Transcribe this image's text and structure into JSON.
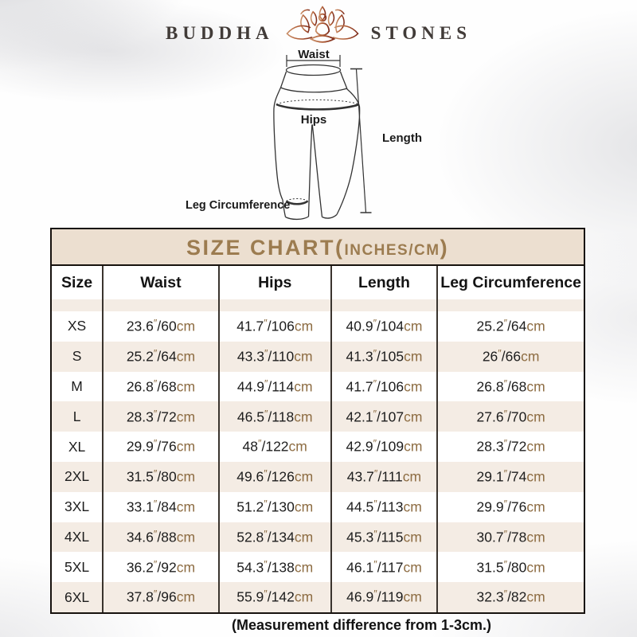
{
  "brand": {
    "name_left": "BUDDHA",
    "name_right": "STONES",
    "logo_icon": "lotus-meditation-icon"
  },
  "diagram": {
    "waist_label": "Waist",
    "hips_label": "Hips",
    "length_label": "Length",
    "leg_label": "Leg Circumference"
  },
  "size_chart": {
    "title_main": "SIZE CHART(",
    "title_sub": "INCHES/CM",
    "title_close": ")",
    "unit_inch_mark": "″",
    "unit_cm": "cm",
    "columns": [
      "Size",
      "Waist",
      "Hips",
      "Length",
      "Leg Circumference"
    ],
    "rows": [
      {
        "size": "XS",
        "waist": {
          "in": "23.6",
          "cm": "60"
        },
        "hips": {
          "in": "41.7",
          "cm": "106"
        },
        "length": {
          "in": "40.9",
          "cm": "104"
        },
        "leg": {
          "in": "25.2",
          "cm": "64"
        }
      },
      {
        "size": "S",
        "waist": {
          "in": "25.2",
          "cm": "64"
        },
        "hips": {
          "in": "43.3",
          "cm": "110"
        },
        "length": {
          "in": "41.3",
          "cm": "105"
        },
        "leg": {
          "in": "26",
          "cm": "66"
        }
      },
      {
        "size": "M",
        "waist": {
          "in": "26.8",
          "cm": "68"
        },
        "hips": {
          "in": "44.9",
          "cm": "114"
        },
        "length": {
          "in": "41.7",
          "cm": "106"
        },
        "leg": {
          "in": "26.8",
          "cm": "68"
        }
      },
      {
        "size": "L",
        "waist": {
          "in": "28.3",
          "cm": "72"
        },
        "hips": {
          "in": "46.5",
          "cm": "118"
        },
        "length": {
          "in": "42.1",
          "cm": "107"
        },
        "leg": {
          "in": "27.6",
          "cm": "70"
        }
      },
      {
        "size": "XL",
        "waist": {
          "in": "29.9",
          "cm": "76"
        },
        "hips": {
          "in": "48",
          "cm": "122"
        },
        "length": {
          "in": "42.9",
          "cm": "109"
        },
        "leg": {
          "in": "28.3",
          "cm": "72"
        }
      },
      {
        "size": "2XL",
        "waist": {
          "in": "31.5",
          "cm": "80"
        },
        "hips": {
          "in": "49.6",
          "cm": "126"
        },
        "length": {
          "in": "43.7",
          "cm": "111"
        },
        "leg": {
          "in": "29.1",
          "cm": "74"
        }
      },
      {
        "size": "3XL",
        "waist": {
          "in": "33.1",
          "cm": "84"
        },
        "hips": {
          "in": "51.2",
          "cm": "130"
        },
        "length": {
          "in": "44.5",
          "cm": "113"
        },
        "leg": {
          "in": "29.9",
          "cm": "76"
        }
      },
      {
        "size": "4XL",
        "waist": {
          "in": "34.6",
          "cm": "88"
        },
        "hips": {
          "in": "52.8",
          "cm": "134"
        },
        "length": {
          "in": "45.3",
          "cm": "115"
        },
        "leg": {
          "in": "30.7",
          "cm": "78"
        }
      },
      {
        "size": "5XL",
        "waist": {
          "in": "36.2",
          "cm": "92"
        },
        "hips": {
          "in": "54.3",
          "cm": "138"
        },
        "length": {
          "in": "46.1",
          "cm": "117"
        },
        "leg": {
          "in": "31.5",
          "cm": "80"
        }
      },
      {
        "size": "6XL",
        "waist": {
          "in": "37.8",
          "cm": "96"
        },
        "hips": {
          "in": "55.9",
          "cm": "142"
        },
        "length": {
          "in": "46.9",
          "cm": "119"
        },
        "leg": {
          "in": "32.3",
          "cm": "82"
        }
      }
    ]
  },
  "footnote": "(Measurement difference from 1-3cm.)",
  "colors": {
    "accent_tan": "#9c7c50",
    "unit_tan": "#8d6c42",
    "title_bar_bg": "#ecdfd0",
    "row_beige": "#f4ece4",
    "border_dark": "#17120e",
    "logo_gradient_left": "#c98f68",
    "logo_gradient_right": "#7e2c1c"
  },
  "chart_data": {
    "type": "table",
    "title": "SIZE CHART(INCHES/CM)",
    "columns": [
      "Size",
      "Waist",
      "Hips",
      "Length",
      "Leg Circumference"
    ],
    "rows": [
      [
        "XS",
        "23.6″/60cm",
        "41.7″/106cm",
        "40.9″/104cm",
        "25.2″/64cm"
      ],
      [
        "S",
        "25.2″/64cm",
        "43.3″/110cm",
        "41.3″/105cm",
        "26″/66cm"
      ],
      [
        "M",
        "26.8″/68cm",
        "44.9″/114cm",
        "41.7″/106cm",
        "26.8″/68cm"
      ],
      [
        "L",
        "28.3″/72cm",
        "46.5″/118cm",
        "42.1″/107cm",
        "27.6″/70cm"
      ],
      [
        "XL",
        "29.9″/76cm",
        "48″/122cm",
        "42.9″/109cm",
        "28.3″/72cm"
      ],
      [
        "2XL",
        "31.5″/80cm",
        "49.6″/126cm",
        "43.7″/111cm",
        "29.1″/74cm"
      ],
      [
        "3XL",
        "33.1″/84cm",
        "51.2″/130cm",
        "44.5″/113cm",
        "29.9″/76cm"
      ],
      [
        "4XL",
        "34.6″/88cm",
        "52.8″/134cm",
        "45.3″/115cm",
        "30.7″/78cm"
      ],
      [
        "5XL",
        "36.2″/92cm",
        "54.3″/138cm",
        "46.1″/117cm",
        "31.5″/80cm"
      ],
      [
        "6XL",
        "37.8″/96cm",
        "55.9″/142cm",
        "46.9″/119cm",
        "32.3″/82cm"
      ]
    ],
    "note": "(Measurement difference from 1-3cm.)"
  }
}
